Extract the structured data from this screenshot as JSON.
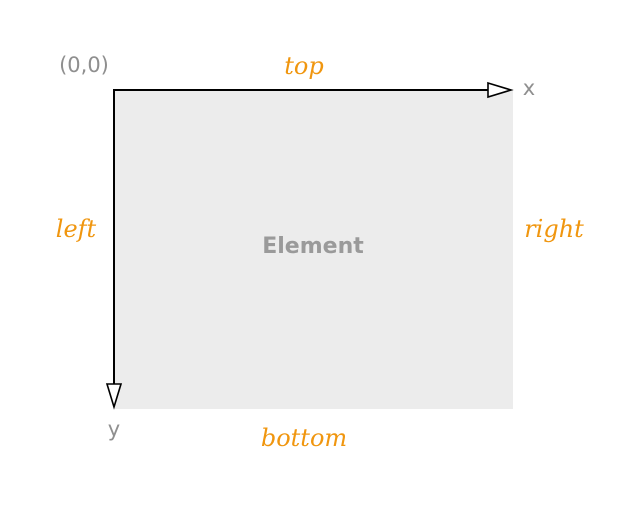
{
  "origin_label": "(0,0)",
  "axes": {
    "x_label": "x",
    "y_label": "y"
  },
  "element": {
    "label": "Element"
  },
  "edges": {
    "top": "top",
    "left": "left",
    "right": "right",
    "bottom": "bottom"
  },
  "colors": {
    "element_fill": "#ececec",
    "edge_label": "#f0960f",
    "muted_text": "#8f8f8f",
    "axis": "#000000"
  }
}
